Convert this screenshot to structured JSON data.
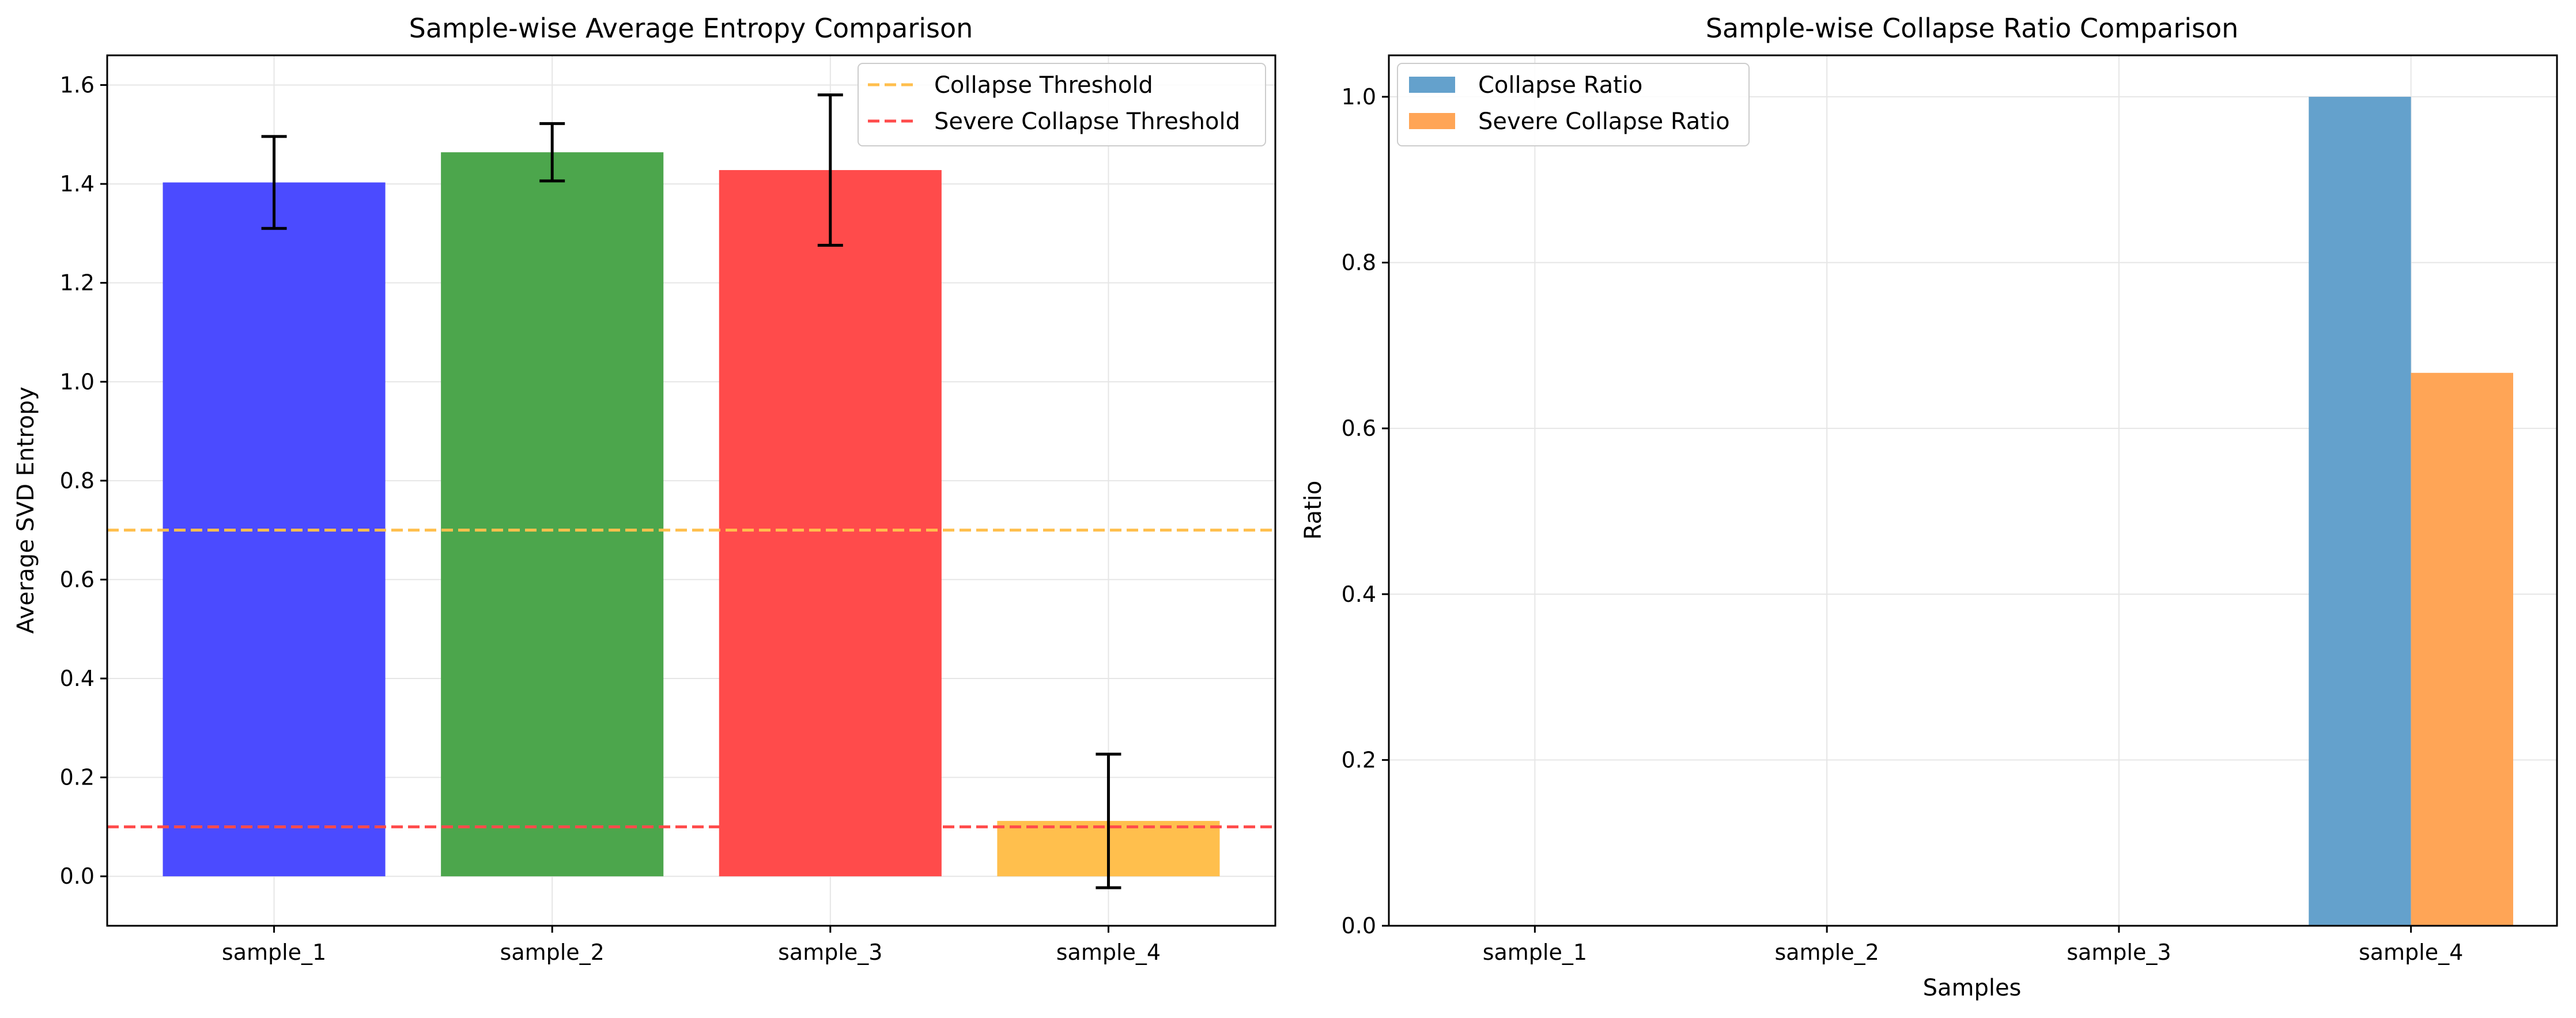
{
  "chart_data": [
    {
      "type": "bar",
      "title": "Sample-wise Average Entropy Comparison",
      "xlabel": "",
      "ylabel": "Average SVD Entropy",
      "categories": [
        "sample_1",
        "sample_2",
        "sample_3",
        "sample_4"
      ],
      "values": [
        1.403,
        1.464,
        1.428,
        0.112
      ],
      "errors": [
        0.093,
        0.058,
        0.152,
        0.135
      ],
      "bar_colors": [
        "#4b4bff",
        "#4ca64c",
        "#ff4b4b",
        "#ffbf4d"
      ],
      "ylim": [
        -0.1,
        1.66
      ],
      "yticks": [
        "0.0",
        "0.2",
        "0.4",
        "0.6",
        "0.8",
        "1.0",
        "1.2",
        "1.4",
        "1.6"
      ],
      "thresholds": [
        {
          "name": "Collapse Threshold",
          "value": 0.7,
          "color": "#ffbf4d"
        },
        {
          "name": "Severe Collapse Threshold",
          "value": 0.1,
          "color": "#ff4b4b"
        }
      ],
      "legend_position": "top-right",
      "grid": true
    },
    {
      "type": "bar",
      "title": "Sample-wise Collapse Ratio Comparison",
      "xlabel": "Samples",
      "ylabel": "Ratio",
      "categories": [
        "sample_1",
        "sample_2",
        "sample_3",
        "sample_4"
      ],
      "series": [
        {
          "name": "Collapse Ratio",
          "values": [
            0,
            0,
            0,
            1.0
          ],
          "color": "#64a1cc"
        },
        {
          "name": "Severe Collapse Ratio",
          "values": [
            0,
            0,
            0,
            0.667
          ],
          "color": "#ffa556"
        }
      ],
      "ylim": [
        0,
        1.05
      ],
      "yticks": [
        "0.0",
        "0.2",
        "0.4",
        "0.6",
        "0.8",
        "1.0"
      ],
      "legend_position": "top-left",
      "grid": true
    }
  ]
}
